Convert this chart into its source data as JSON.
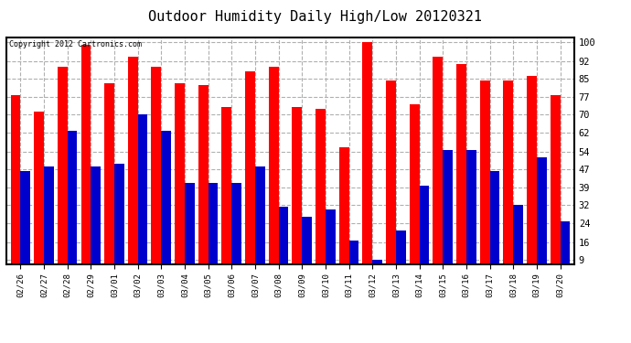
{
  "title": "Outdoor Humidity Daily High/Low 20120321",
  "copyright": "Copyright 2012 Cartronics.com",
  "dates": [
    "02/26",
    "02/27",
    "02/28",
    "02/29",
    "03/01",
    "03/02",
    "03/03",
    "03/04",
    "03/05",
    "03/06",
    "03/07",
    "03/08",
    "03/09",
    "03/10",
    "03/11",
    "03/12",
    "03/13",
    "03/14",
    "03/15",
    "03/16",
    "03/17",
    "03/18",
    "03/19",
    "03/20"
  ],
  "highs": [
    78,
    71,
    90,
    99,
    83,
    94,
    90,
    83,
    82,
    73,
    88,
    90,
    73,
    72,
    56,
    100,
    84,
    74,
    94,
    91,
    84,
    84,
    86,
    78
  ],
  "lows": [
    46,
    48,
    63,
    48,
    49,
    70,
    63,
    41,
    41,
    41,
    48,
    31,
    27,
    30,
    17,
    9,
    21,
    40,
    55,
    55,
    46,
    32,
    52,
    25
  ],
  "high_color": "#ff0000",
  "low_color": "#0000cc",
  "bg_color": "#ffffff",
  "plot_bg_color": "#ffffff",
  "grid_color": "#b0b0b0",
  "yticks": [
    9,
    16,
    24,
    32,
    39,
    47,
    54,
    62,
    70,
    77,
    85,
    92,
    100
  ],
  "ymin": 9,
  "ymax": 100,
  "title_fontsize": 11,
  "copyright_fontsize": 6,
  "bar_width": 0.42
}
